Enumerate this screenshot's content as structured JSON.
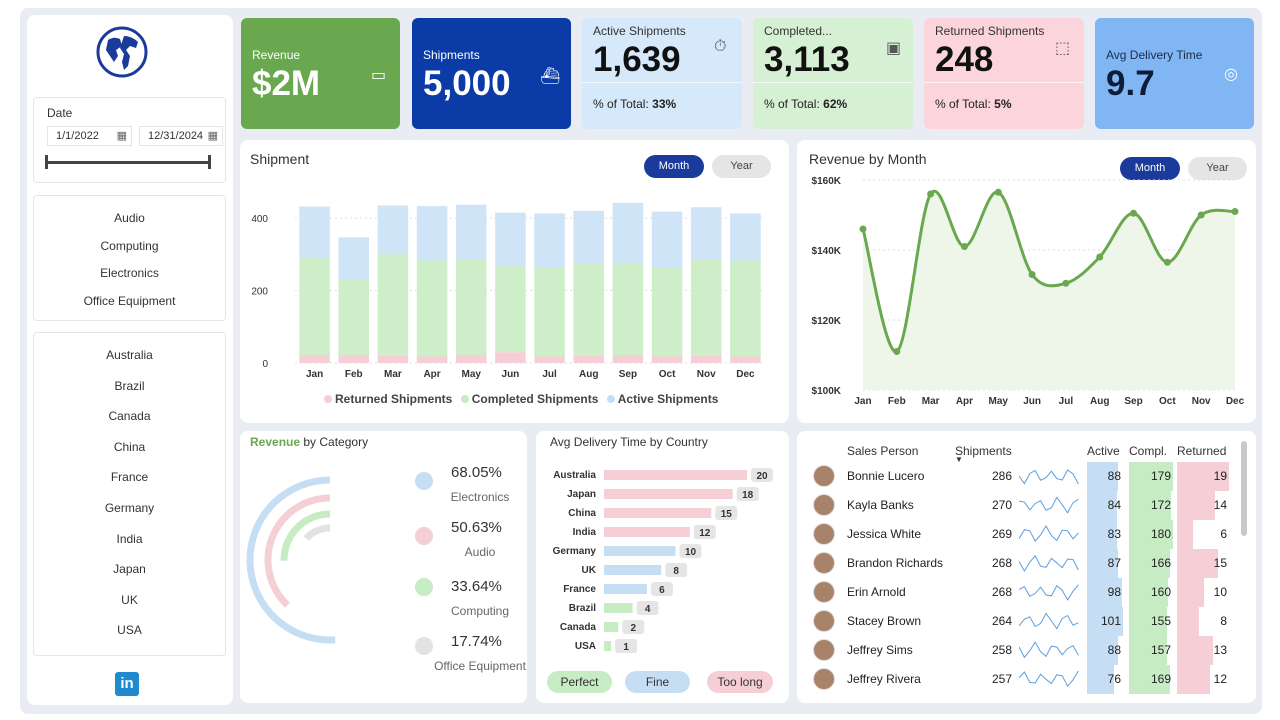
{
  "filters": {
    "date_label": "Date",
    "date_start": "1/1/2022",
    "date_end": "12/31/2024",
    "categories": [
      "Audio",
      "Computing",
      "Electronics",
      "Office Equipment"
    ],
    "countries": [
      "Australia",
      "Brazil",
      "Canada",
      "China",
      "France",
      "Germany",
      "India",
      "Japan",
      "UK",
      "USA"
    ],
    "linkedin": "in"
  },
  "kpis": {
    "revenue": {
      "title": "Revenue",
      "value": "$2M"
    },
    "shipments": {
      "title": "Shipments",
      "value": "5,000"
    },
    "active": {
      "title": "Active Shipments",
      "value": "1,639",
      "pct_label": "% of Total:",
      "pct": "33%"
    },
    "completed": {
      "title": "Completed...",
      "value": "3,113",
      "pct_label": "% of Total:",
      "pct": "62%"
    },
    "returned": {
      "title": "Returned Shipments",
      "value": "248",
      "pct_label": "% of Total:",
      "pct": "5%"
    },
    "delivery": {
      "title": "Avg Delivery Time",
      "value": "9.7"
    }
  },
  "toggle": {
    "month": "Month",
    "year": "Year"
  },
  "shipment_chart": {
    "title": "Shipment",
    "legend": [
      "Returned Shipments",
      "Completed Shipments",
      "Active Shipments"
    ],
    "colors": {
      "returned": "#f6cfd6",
      "completed": "#cdeec8",
      "active": "#cfe4f7"
    }
  },
  "revenue_chart": {
    "title": "Revenue by Month",
    "color": "#6aa84f"
  },
  "category_panel": {
    "title_bold": "Revenue",
    "title_rest": "by Category",
    "items": [
      {
        "pct": "68.05%",
        "name": "Electronics",
        "color": "#c6def3",
        "value": 68.05
      },
      {
        "pct": "50.63%",
        "name": "Audio",
        "color": "#f4cfd5",
        "value": 50.63
      },
      {
        "pct": "33.64%",
        "name": "Computing",
        "color": "#c7ebc3",
        "value": 33.64
      },
      {
        "pct": "17.74%",
        "name": "Office Equipment",
        "color": "#e2e2e2",
        "value": 17.74
      }
    ]
  },
  "delivery_panel": {
    "title": "Avg Delivery Time by Country",
    "pills": [
      "Perfect",
      "Fine",
      "Too long"
    ]
  },
  "chart_data": [
    {
      "type": "bar",
      "title": "Shipment",
      "categories": [
        "Jan",
        "Feb",
        "Mar",
        "Apr",
        "May",
        "Jun",
        "Jul",
        "Aug",
        "Sep",
        "Oct",
        "Nov",
        "Dec"
      ],
      "series": [
        {
          "name": "Returned Shipments",
          "values": [
            22,
            22,
            20,
            18,
            22,
            30,
            18,
            20,
            22,
            18,
            20,
            18
          ]
        },
        {
          "name": "Completed Shipments",
          "values": [
            270,
            210,
            280,
            265,
            265,
            240,
            245,
            255,
            255,
            245,
            265,
            265
          ]
        },
        {
          "name": "Active Shipments",
          "values": [
            140,
            115,
            135,
            150,
            150,
            145,
            150,
            145,
            165,
            155,
            145,
            130
          ]
        }
      ],
      "yticks": [
        0,
        200,
        400
      ],
      "ylim": [
        0,
        450
      ]
    },
    {
      "type": "line",
      "title": "Revenue by Month",
      "categories": [
        "Jan",
        "Feb",
        "Mar",
        "Apr",
        "May",
        "Jun",
        "Jul",
        "Aug",
        "Sep",
        "Oct",
        "Nov",
        "Dec"
      ],
      "values": [
        146000,
        111000,
        156000,
        141000,
        156500,
        133000,
        130500,
        138000,
        150500,
        136500,
        150000,
        151000
      ],
      "yticks": [
        "$100K",
        "$120K",
        "$140K",
        "$160K"
      ],
      "ylim": [
        100000,
        160000
      ]
    },
    {
      "type": "bar",
      "title": "Avg Delivery Time by Country",
      "categories": [
        "Australia",
        "Japan",
        "China",
        "India",
        "Germany",
        "UK",
        "France",
        "Brazil",
        "Canada",
        "USA"
      ],
      "values": [
        20,
        18,
        15,
        12,
        10,
        8,
        6,
        4,
        2,
        1
      ]
    }
  ],
  "table": {
    "headers": [
      "Sales Person",
      "Shipments",
      "Active",
      "Compl.",
      "Returned"
    ],
    "rows": [
      {
        "name": "Bonnie Lucero",
        "shipments": 286,
        "active": 88,
        "completed": 179,
        "returned": 19
      },
      {
        "name": "Kayla Banks",
        "shipments": 270,
        "active": 84,
        "completed": 172,
        "returned": 14
      },
      {
        "name": "Jessica White",
        "shipments": 269,
        "active": 83,
        "completed": 180,
        "returned": 6
      },
      {
        "name": "Brandon Richards",
        "shipments": 268,
        "active": 87,
        "completed": 166,
        "returned": 15
      },
      {
        "name": "Erin Arnold",
        "shipments": 268,
        "active": 98,
        "completed": 160,
        "returned": 10
      },
      {
        "name": "Stacey Brown",
        "shipments": 264,
        "active": 101,
        "completed": 155,
        "returned": 8
      },
      {
        "name": "Jeffrey Sims",
        "shipments": 258,
        "active": 88,
        "completed": 157,
        "returned": 13
      },
      {
        "name": "Jeffrey Rivera",
        "shipments": 257,
        "active": 76,
        "completed": 169,
        "returned": 12
      }
    ]
  }
}
